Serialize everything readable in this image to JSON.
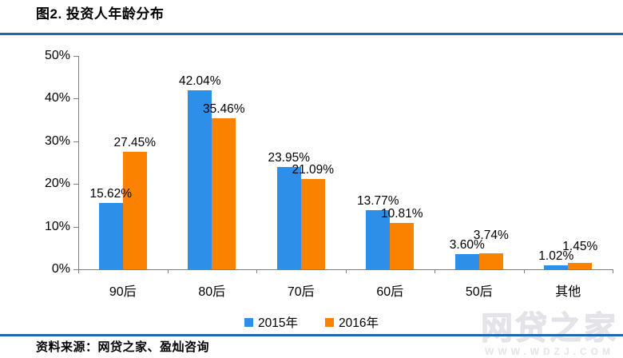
{
  "title": "图2. 投资人年龄分布",
  "source": "资料来源：网贷之家、盈灿咨询",
  "watermark": {
    "brand": "网贷之家",
    "url": "WWW.WDZJ.COM"
  },
  "colors": {
    "series_2015": "#2e8fe8",
    "series_2016": "#fb8200",
    "divider_blue": "#1f67b2",
    "axis_gray": "#7f7f7f",
    "label_black": "#000000",
    "watermark_gray": "#eaeaee"
  },
  "chart_data": {
    "type": "bar",
    "title": "投资人年龄分布",
    "categories": [
      "90后",
      "80后",
      "70后",
      "60后",
      "50后",
      "其他"
    ],
    "series": [
      {
        "name": "2015年",
        "color": "#2e8fe8",
        "values": [
          15.62,
          42.04,
          23.95,
          13.77,
          3.6,
          1.02
        ],
        "labels": [
          "15.62%",
          "42.04%",
          "23.95%",
          "13.77%",
          "3.60%",
          "1.02%"
        ]
      },
      {
        "name": "2016年",
        "color": "#fb8200",
        "values": [
          27.45,
          35.46,
          21.09,
          10.81,
          3.74,
          1.45
        ],
        "labels": [
          "27.45%",
          "35.46%",
          "21.09%",
          "10.81%",
          "3.74%",
          "1.45%"
        ]
      }
    ],
    "ylabel": "",
    "xlabel": "",
    "ylim": [
      0,
      50
    ],
    "ytick_labels": [
      "0%",
      "10%",
      "20%",
      "30%",
      "40%",
      "50%"
    ],
    "grid": false,
    "legend_position": "bottom"
  }
}
